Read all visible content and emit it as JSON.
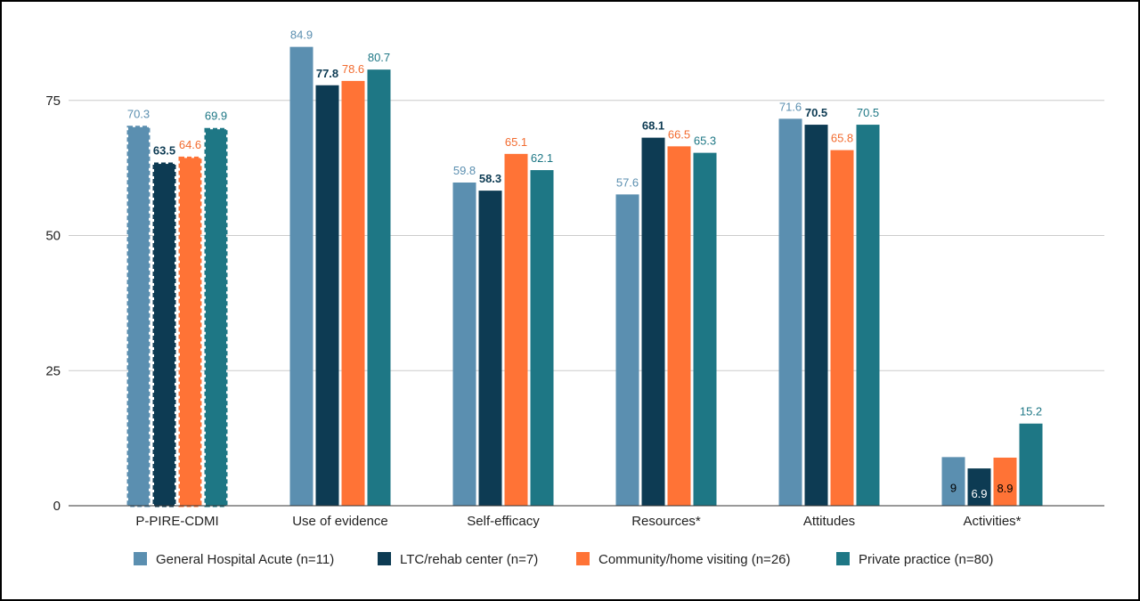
{
  "chart_data": {
    "type": "bar",
    "title": "",
    "xlabel": "",
    "ylabel": "",
    "ylim": [
      0,
      90
    ],
    "yticks": [
      0,
      25,
      50,
      75
    ],
    "grid": true,
    "legend_position": "bottom",
    "categories": [
      "P-PIRE-CDMI",
      "Use of evidence",
      "Self-efficacy",
      "Resources*",
      "Attitudes",
      "Activities*"
    ],
    "dashed_category": "P-PIRE-CDMI",
    "series": [
      {
        "name": "General Hospital Acute (n=11)",
        "color": "#5B8FB0",
        "label_color": "#5B8FB0",
        "values": [
          70.3,
          84.9,
          59.8,
          57.6,
          71.6,
          9
        ],
        "labels": [
          "70.3",
          "84.9",
          "59.8",
          "57.6",
          "71.6",
          "9"
        ]
      },
      {
        "name": "LTC/rehab center (n=7)",
        "color": "#0D3B53",
        "label_color": "#0D3B53",
        "values": [
          63.5,
          77.8,
          58.3,
          68.1,
          70.5,
          6.9
        ],
        "labels": [
          "63.5",
          "77.8",
          "58.3",
          "68.1",
          "70.5",
          "6.9"
        ]
      },
      {
        "name": "Community/home visiting (n=26)",
        "color": "#FF7336",
        "label_color": "#F26B2F",
        "values": [
          64.6,
          78.6,
          65.1,
          66.5,
          65.8,
          8.9
        ],
        "labels": [
          "64.6",
          "78.6",
          "65.1",
          "66.5",
          "65.8",
          "8.9"
        ]
      },
      {
        "name": "Private practice (n=80)",
        "color": "#1E7785",
        "label_color": "#1E7785",
        "values": [
          69.9,
          80.7,
          62.1,
          65.3,
          70.5,
          15.2
        ],
        "labels": [
          "69.9",
          "80.7",
          "62.1",
          "65.3",
          "70.5",
          "15.2"
        ]
      }
    ]
  }
}
